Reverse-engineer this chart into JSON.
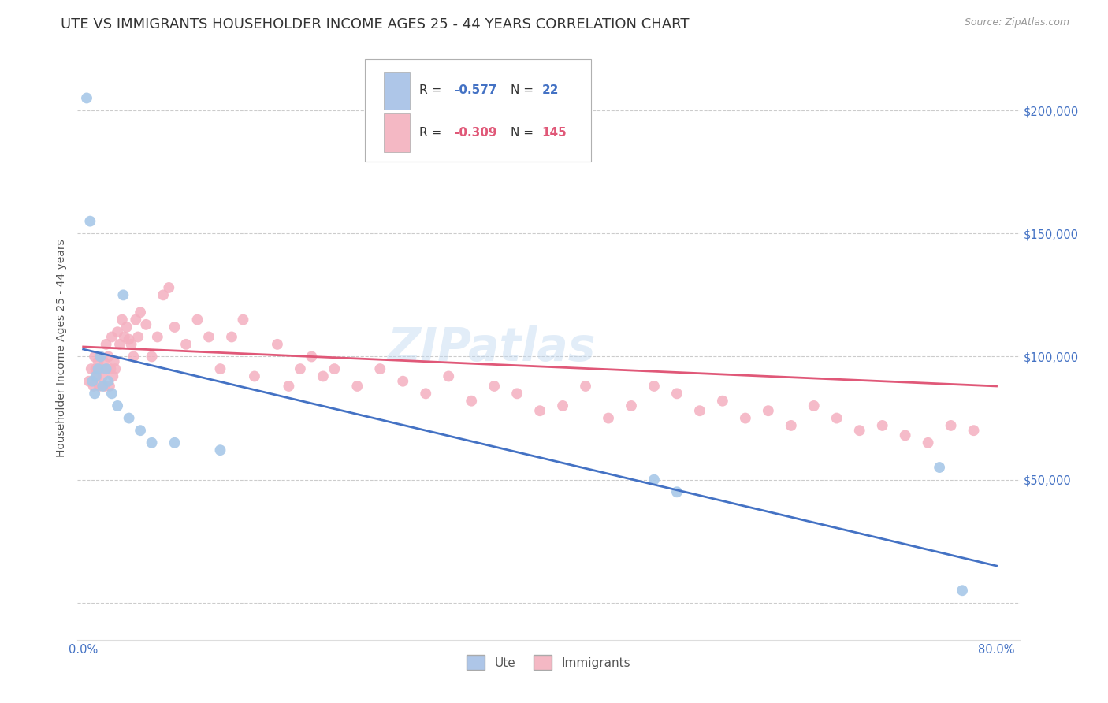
{
  "title": "UTE VS IMMIGRANTS HOUSEHOLDER INCOME AGES 25 - 44 YEARS CORRELATION CHART",
  "source": "Source: ZipAtlas.com",
  "ylabel": "Householder Income Ages 25 - 44 years",
  "legend_colors_box": [
    "#aec6e8",
    "#f4b8c4"
  ],
  "legend_colors_scatter": [
    "#a8c8e8",
    "#f4b0c0"
  ],
  "legend_colors_line": [
    "#4472c4",
    "#e05878"
  ],
  "watermark": "ZIPatlas",
  "background_color": "#ffffff",
  "grid_color": "#cccccc",
  "ute_scatter_x": [
    0.003,
    0.006,
    0.008,
    0.01,
    0.011,
    0.013,
    0.015,
    0.017,
    0.02,
    0.022,
    0.025,
    0.03,
    0.035,
    0.04,
    0.05,
    0.06,
    0.08,
    0.12,
    0.5,
    0.52,
    0.75,
    0.77
  ],
  "ute_scatter_y": [
    205000,
    155000,
    90000,
    85000,
    92000,
    95000,
    100000,
    88000,
    95000,
    90000,
    85000,
    80000,
    125000,
    75000,
    70000,
    65000,
    65000,
    62000,
    50000,
    45000,
    55000,
    5000
  ],
  "imm_scatter_x": [
    0.005,
    0.007,
    0.009,
    0.01,
    0.011,
    0.012,
    0.013,
    0.014,
    0.015,
    0.016,
    0.017,
    0.018,
    0.019,
    0.02,
    0.021,
    0.022,
    0.023,
    0.024,
    0.025,
    0.026,
    0.027,
    0.028,
    0.03,
    0.032,
    0.034,
    0.036,
    0.038,
    0.04,
    0.042,
    0.044,
    0.046,
    0.048,
    0.05,
    0.055,
    0.06,
    0.065,
    0.07,
    0.075,
    0.08,
    0.09,
    0.1,
    0.11,
    0.12,
    0.13,
    0.14,
    0.15,
    0.17,
    0.18,
    0.19,
    0.2,
    0.21,
    0.22,
    0.24,
    0.26,
    0.28,
    0.3,
    0.32,
    0.34,
    0.36,
    0.38,
    0.4,
    0.42,
    0.44,
    0.46,
    0.48,
    0.5,
    0.52,
    0.54,
    0.56,
    0.58,
    0.6,
    0.62,
    0.64,
    0.66,
    0.68,
    0.7,
    0.72,
    0.74,
    0.76,
    0.78
  ],
  "imm_scatter_y": [
    90000,
    95000,
    88000,
    100000,
    95000,
    92000,
    98000,
    88000,
    100000,
    95000,
    92000,
    98000,
    88000,
    105000,
    95000,
    100000,
    88000,
    95000,
    108000,
    92000,
    98000,
    95000,
    110000,
    105000,
    115000,
    108000,
    112000,
    107000,
    105000,
    100000,
    115000,
    108000,
    118000,
    113000,
    100000,
    108000,
    125000,
    128000,
    112000,
    105000,
    115000,
    108000,
    95000,
    108000,
    115000,
    92000,
    105000,
    88000,
    95000,
    100000,
    92000,
    95000,
    88000,
    95000,
    90000,
    85000,
    92000,
    82000,
    88000,
    85000,
    78000,
    80000,
    88000,
    75000,
    80000,
    88000,
    85000,
    78000,
    82000,
    75000,
    78000,
    72000,
    80000,
    75000,
    70000,
    72000,
    68000,
    65000,
    72000,
    70000
  ],
  "ute_line_x": [
    0.0,
    0.8
  ],
  "ute_line_y": [
    103000,
    15000
  ],
  "imm_line_x": [
    0.0,
    0.8
  ],
  "imm_line_y": [
    104000,
    88000
  ],
  "xlim": [
    -0.005,
    0.82
  ],
  "ylim": [
    -15000,
    222000
  ],
  "x_ticks": [
    0.0,
    0.1,
    0.2,
    0.3,
    0.4,
    0.5,
    0.6,
    0.7,
    0.8
  ],
  "y_ticks": [
    0,
    50000,
    100000,
    150000,
    200000
  ],
  "y_right_labels": [
    "",
    "$50,000",
    "$100,000",
    "$150,000",
    "$200,000"
  ],
  "title_fontsize": 13,
  "tick_fontsize": 10.5,
  "marker_size": 100
}
